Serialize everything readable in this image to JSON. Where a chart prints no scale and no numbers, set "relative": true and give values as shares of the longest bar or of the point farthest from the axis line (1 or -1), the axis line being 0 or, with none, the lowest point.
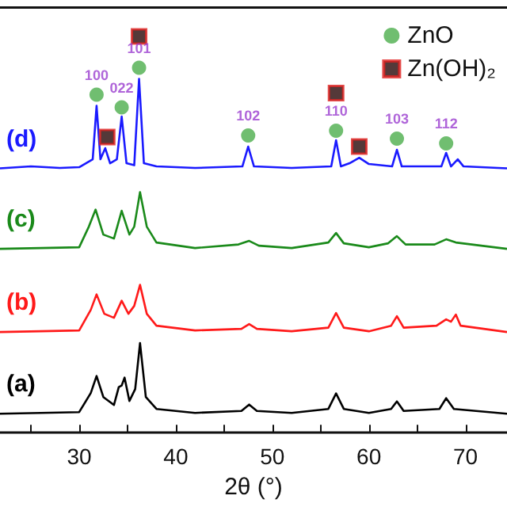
{
  "chart_data": {
    "type": "line",
    "relative": true,
    "xlabel": "2θ (°)",
    "xlim": [
      21.8,
      74.3
    ],
    "xticks": [
      {
        "value": 25,
        "label": null
      },
      30,
      {
        "value": 35,
        "label": null
      },
      40,
      {
        "value": 45,
        "label": null
      },
      50,
      {
        "value": 55,
        "label": null
      },
      60,
      {
        "value": 65,
        "label": null
      },
      70
    ],
    "legend": "top right",
    "grid": false,
    "marker": "none",
    "line_style": "solid",
    "series": [
      {
        "name": "(a)",
        "color": "#000000",
        "x": [
          21.8,
          26,
          30,
          31.2,
          31.8,
          32.5,
          33.6,
          34.1,
          34.4,
          34.7,
          35.2,
          35.8,
          36.3,
          36.9,
          38,
          42,
          46.8,
          47.6,
          48.4,
          52,
          55.8,
          56.6,
          57.4,
          60,
          62.3,
          62.9,
          63.6,
          67.3,
          68,
          68.8,
          74.3
        ],
        "values": [
          0.048,
          0.05,
          0.052,
          0.1,
          0.143,
          0.09,
          0.07,
          0.115,
          0.119,
          0.139,
          0.08,
          0.11,
          0.226,
          0.09,
          0.06,
          0.05,
          0.055,
          0.071,
          0.055,
          0.05,
          0.06,
          0.099,
          0.06,
          0.05,
          0.06,
          0.079,
          0.055,
          0.06,
          0.087,
          0.06,
          0.048
        ]
      },
      {
        "name": "(b)",
        "color": "#ff1a1a",
        "x": [
          21.8,
          26,
          30,
          31.2,
          31.8,
          32.6,
          33.6,
          34.4,
          35.1,
          35.7,
          36.3,
          37,
          38,
          42,
          46.8,
          47.6,
          48.4,
          52,
          55.8,
          56.6,
          57.4,
          60,
          62.3,
          62.9,
          63.6,
          67,
          68,
          68.5,
          69,
          69.5,
          74.3
        ],
        "values": [
          0.254,
          0.256,
          0.258,
          0.31,
          0.349,
          0.3,
          0.29,
          0.333,
          0.3,
          0.32,
          0.373,
          0.3,
          0.27,
          0.258,
          0.262,
          0.274,
          0.262,
          0.256,
          0.265,
          0.302,
          0.265,
          0.256,
          0.27,
          0.294,
          0.265,
          0.27,
          0.286,
          0.28,
          0.298,
          0.27,
          0.254
        ]
      },
      {
        "name": "(c)",
        "color": "#1a8a1a",
        "x": [
          21.8,
          26,
          30,
          31,
          31.7,
          32.5,
          33.6,
          34.4,
          35.2,
          35.7,
          36.3,
          37,
          38,
          42,
          46.5,
          47.6,
          48.6,
          52,
          55.8,
          56.6,
          57.4,
          60,
          62,
          62.9,
          63.8,
          66.8,
          68,
          69,
          74.3
        ],
        "values": [
          0.464,
          0.466,
          0.468,
          0.52,
          0.563,
          0.5,
          0.49,
          0.56,
          0.5,
          0.52,
          0.607,
          0.52,
          0.48,
          0.466,
          0.475,
          0.484,
          0.472,
          0.466,
          0.48,
          0.504,
          0.478,
          0.468,
          0.478,
          0.496,
          0.475,
          0.475,
          0.488,
          0.48,
          0.464
        ]
      },
      {
        "name": "(d)",
        "color": "#1a1aff",
        "x": [
          21.8,
          25,
          28,
          30,
          31.4,
          31.8,
          32.2,
          32.7,
          33.2,
          33.9,
          34.4,
          34.9,
          35.7,
          36.2,
          36.7,
          38,
          42,
          46.9,
          47.5,
          48.1,
          52,
          56.1,
          56.6,
          57.1,
          58,
          59,
          60,
          62.4,
          62.9,
          63.4,
          67.5,
          68,
          68.5,
          69.2,
          69.8,
          74.3
        ],
        "values": [
          0.667,
          0.672,
          0.668,
          0.67,
          0.69,
          0.825,
          0.69,
          0.718,
          0.68,
          0.69,
          0.798,
          0.68,
          0.675,
          0.893,
          0.68,
          0.672,
          0.668,
          0.672,
          0.722,
          0.672,
          0.668,
          0.672,
          0.738,
          0.672,
          0.68,
          0.694,
          0.678,
          0.672,
          0.714,
          0.672,
          0.672,
          0.706,
          0.672,
          0.69,
          0.672,
          0.667
        ]
      },
      {
        "name": "ZnO",
        "type": "scatter",
        "marker": "circle",
        "color": "#4cae4c",
        "x": [
          31.8,
          34.4,
          36.2,
          47.5,
          56.6,
          62.9,
          68.0
        ],
        "values": [
          0.853,
          0.821,
          0.921,
          0.75,
          0.762,
          0.742,
          0.73
        ]
      },
      {
        "name": "Zn(OH)₂",
        "type": "scatter",
        "marker": "square",
        "color": "#2a0808",
        "x": [
          32.9,
          36.2,
          56.6,
          59.0
        ],
        "values": [
          0.746,
          1.0,
          0.857,
          0.722
        ]
      }
    ],
    "annotations": [
      {
        "text": "100",
        "x": 31.8,
        "y": 0.853
      },
      {
        "text": "022",
        "x": 34.4,
        "y": 0.821
      },
      {
        "text": "101",
        "x": 36.2,
        "y": 0.921
      },
      {
        "text": "102",
        "x": 47.5,
        "y": 0.75
      },
      {
        "text": "110",
        "x": 56.6,
        "y": 0.762
      },
      {
        "text": "103",
        "x": 62.9,
        "y": 0.742
      },
      {
        "text": "112",
        "x": 68.0,
        "y": 0.73
      }
    ]
  }
}
